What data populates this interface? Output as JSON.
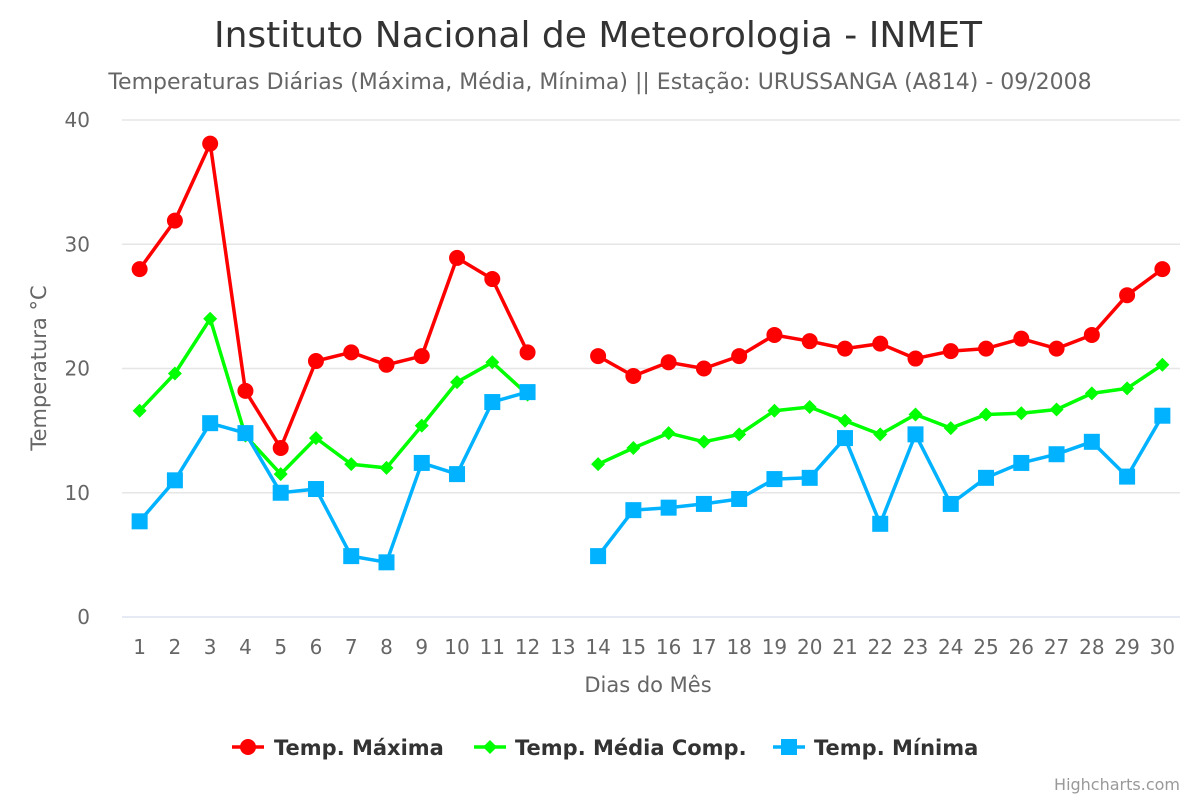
{
  "chart_data": {
    "type": "line",
    "title": "Instituto Nacional de Meteorologia - INMET",
    "subtitle": "Temperaturas Diárias (Máxima, Média, Mínima) || Estação: URUSSANGA (A814) - 09/2008",
    "xlabel": "Dias do Mês",
    "ylabel": "Temperatura °C",
    "categories": [
      "1",
      "2",
      "3",
      "4",
      "5",
      "6",
      "7",
      "8",
      "9",
      "10",
      "11",
      "12",
      "13",
      "14",
      "15",
      "16",
      "17",
      "18",
      "19",
      "20",
      "21",
      "22",
      "23",
      "24",
      "25",
      "26",
      "27",
      "28",
      "29",
      "30"
    ],
    "y_ticks": [
      "0",
      "10",
      "20",
      "30",
      "40"
    ],
    "ylim": [
      0,
      40
    ],
    "grid": true,
    "legend_position": "bottom-center",
    "series": [
      {
        "name": "Temp. Máxima",
        "color": "#ff0000",
        "marker": "circle",
        "values": [
          28.0,
          31.9,
          38.1,
          18.2,
          13.6,
          20.6,
          21.3,
          20.3,
          21.0,
          28.9,
          27.2,
          21.3,
          null,
          21.0,
          19.4,
          20.5,
          20.0,
          21.0,
          22.7,
          22.2,
          21.6,
          22.0,
          20.8,
          21.4,
          21.6,
          22.4,
          21.6,
          22.7,
          25.9,
          28.0
        ]
      },
      {
        "name": "Temp. Média Comp.",
        "color": "#00ff00",
        "marker": "diamond",
        "values": [
          16.6,
          19.6,
          24.0,
          14.6,
          11.5,
          14.4,
          12.3,
          12.0,
          15.4,
          18.9,
          20.5,
          17.9,
          null,
          12.3,
          13.6,
          14.8,
          14.1,
          14.7,
          16.6,
          16.9,
          15.8,
          14.7,
          16.3,
          15.2,
          16.3,
          16.4,
          16.7,
          18.0,
          18.4,
          20.3
        ]
      },
      {
        "name": "Temp. Mínima",
        "color": "#00b2ff",
        "marker": "square",
        "values": [
          7.7,
          11.0,
          15.6,
          14.8,
          10.0,
          10.3,
          4.9,
          4.4,
          12.4,
          11.5,
          17.3,
          18.1,
          null,
          4.9,
          8.6,
          8.8,
          9.1,
          9.5,
          11.1,
          11.2,
          14.4,
          7.5,
          14.7,
          9.1,
          11.2,
          12.4,
          13.1,
          14.1,
          11.3,
          16.2
        ]
      }
    ],
    "credits": "Highcharts.com"
  }
}
